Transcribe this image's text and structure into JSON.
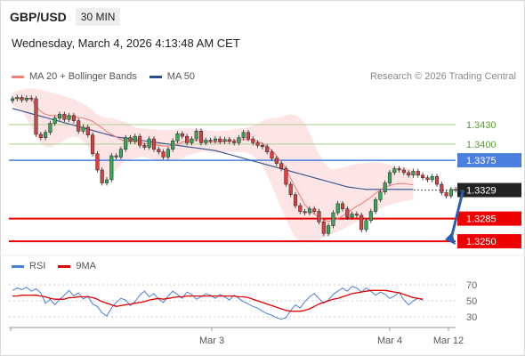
{
  "header": {
    "symbol": "GBP/USD",
    "timeframe": "30 MIN",
    "datetime": "Wednesday, March 4, 2026 4:13:48 AM CET"
  },
  "legend": {
    "ma20": {
      "label": "MA 20 + Bollinger Bands",
      "color": "#f08080"
    },
    "ma50": {
      "label": "MA 50",
      "color": "#2c4f8c"
    }
  },
  "credit": "Research © 2026 Trading Central",
  "rsi_legend": {
    "rsi": {
      "label": "RSI",
      "color": "#4a7fd6"
    },
    "ma9": {
      "label": "9MA",
      "color": "#e00000"
    }
  },
  "chart_data": [
    {
      "type": "line",
      "subtype": "candlestick",
      "title": "",
      "x_ticks": [
        "Mar 3",
        "Mar 4",
        "Mar 12"
      ],
      "ylim": [
        1.3235,
        1.3485
      ],
      "levels": [
        {
          "value": "1.3430",
          "kind": "target",
          "color": "#a9d08e",
          "text_color": "#5a9e2f"
        },
        {
          "value": "1.3400",
          "kind": "target",
          "color": "#a9d08e",
          "text_color": "#5a9e2f"
        },
        {
          "value": "1.3375",
          "kind": "pivot",
          "color": "#4a7fe0",
          "text_color": "#ffffff"
        },
        {
          "value": "1.3329",
          "kind": "last",
          "color": "#222222",
          "text_color": "#ffffff"
        },
        {
          "value": "1.3285",
          "kind": "target",
          "color": "#ee0000",
          "text_color": "#ffffff"
        },
        {
          "value": "1.3250",
          "kind": "target",
          "color": "#ee0000",
          "text_color": "#ffffff"
        }
      ],
      "close": [
        1.347,
        1.3472,
        1.3468,
        1.3471,
        1.347,
        1.3415,
        1.341,
        1.3418,
        1.3432,
        1.344,
        1.3446,
        1.3438,
        1.3444,
        1.3436,
        1.342,
        1.3426,
        1.3414,
        1.3385,
        1.336,
        1.334,
        1.3345,
        1.3382,
        1.338,
        1.3392,
        1.341,
        1.3404,
        1.3412,
        1.3398,
        1.3395,
        1.3408,
        1.3392,
        1.3388,
        1.338,
        1.3392,
        1.3405,
        1.3416,
        1.3412,
        1.3402,
        1.3408,
        1.342,
        1.3402,
        1.3406,
        1.3405,
        1.3408,
        1.3404,
        1.3407,
        1.3404,
        1.3402,
        1.341,
        1.3418,
        1.3408,
        1.3402,
        1.3398,
        1.3396,
        1.3388,
        1.3378,
        1.337,
        1.3362,
        1.3338,
        1.3322,
        1.3305,
        1.3296,
        1.3294,
        1.33,
        1.3296,
        1.328,
        1.3262,
        1.3274,
        1.3294,
        1.3308,
        1.33,
        1.3287,
        1.3292,
        1.329,
        1.3268,
        1.3282,
        1.3296,
        1.3314,
        1.3326,
        1.334,
        1.3356,
        1.3362,
        1.336,
        1.3356,
        1.3352,
        1.3358,
        1.3352,
        1.3348,
        1.3345,
        1.335,
        1.3338,
        1.3325,
        1.332,
        1.333,
        1.3329,
        1.3329
      ],
      "ma20": [
        1.347,
        1.3471,
        1.347,
        1.347,
        1.347,
        1.3459,
        1.345,
        1.3446,
        1.3444,
        1.3444,
        1.3444,
        1.3443,
        1.3443,
        1.3443,
        1.3441,
        1.344,
        1.3438,
        1.3435,
        1.343,
        1.3425,
        1.3419,
        1.3415,
        1.3411,
        1.3407,
        1.3404,
        1.3404,
        1.3404,
        1.3403,
        1.3401,
        1.34,
        1.3399,
        1.3398,
        1.3397,
        1.3397,
        1.3398,
        1.34,
        1.3403,
        1.3404,
        1.3405,
        1.3406,
        1.3405,
        1.3404,
        1.3403,
        1.3403,
        1.3403,
        1.3404,
        1.3405,
        1.3405,
        1.3406,
        1.3407,
        1.3407,
        1.3406,
        1.3404,
        1.3401,
        1.3396,
        1.339,
        1.3382,
        1.3373,
        1.3361,
        1.3347,
        1.3333,
        1.332,
        1.3307,
        1.3298,
        1.3292,
        1.3287,
        1.3283,
        1.3281,
        1.3282,
        1.3285,
        1.3289,
        1.3294,
        1.3299,
        1.3304,
        1.3308,
        1.3313,
        1.3318,
        1.3324,
        1.3329,
        1.3333,
        1.3336,
        1.3338,
        1.3339,
        1.3339,
        1.3338,
        1.3337
      ],
      "ma50": [
        1.3455,
        1.3453,
        1.3451,
        1.3449,
        1.3447,
        1.3445,
        1.3443,
        1.3441,
        1.3439,
        1.3437,
        1.3435,
        1.3433,
        1.3431,
        1.3429,
        1.3427,
        1.3425,
        1.3423,
        1.3421,
        1.3419,
        1.3417,
        1.3415,
        1.3413,
        1.3411,
        1.341,
        1.3409,
        1.3408,
        1.3407,
        1.3406,
        1.3405,
        1.3404,
        1.3403,
        1.3402,
        1.3401,
        1.34,
        1.3399,
        1.3398,
        1.3397,
        1.3396,
        1.3395,
        1.3394,
        1.3393,
        1.3392,
        1.3391,
        1.339,
        1.3388,
        1.3386,
        1.3384,
        1.3382,
        1.338,
        1.3378,
        1.3376,
        1.3374,
        1.3372,
        1.337,
        1.3368,
        1.3366,
        1.3364,
        1.3362,
        1.336,
        1.3358,
        1.3356,
        1.3354,
        1.3352,
        1.335,
        1.3348,
        1.3346,
        1.3344,
        1.3342,
        1.334,
        1.3338,
        1.3336,
        1.3334,
        1.3333,
        1.3332,
        1.3331,
        1.333,
        1.333,
        1.333,
        1.333,
        1.333,
        1.333,
        1.333,
        1.333,
        1.333,
        1.333,
        1.333
      ],
      "bb_upper": [
        1.348,
        1.3482,
        1.3484,
        1.3486,
        1.3486,
        1.3485,
        1.3484,
        1.3482,
        1.348,
        1.3478,
        1.3476,
        1.3474,
        1.3472,
        1.347,
        1.3466,
        1.3462,
        1.3458,
        1.3452,
        1.3446,
        1.3442,
        1.344,
        1.344,
        1.3438,
        1.3436,
        1.3434,
        1.343,
        1.3426,
        1.3424,
        1.3424,
        1.3423,
        1.3423,
        1.3422,
        1.3422,
        1.3422,
        1.3422,
        1.3423,
        1.3424,
        1.3424,
        1.3424,
        1.3424,
        1.3423,
        1.3422,
        1.3421,
        1.342,
        1.342,
        1.3421,
        1.3422,
        1.3423,
        1.3424,
        1.3425,
        1.3426,
        1.3428,
        1.3432,
        1.3436,
        1.3438,
        1.344,
        1.344,
        1.3442,
        1.3444,
        1.3446,
        1.3445,
        1.344,
        1.3432,
        1.3418,
        1.34,
        1.3385,
        1.3372,
        1.3364,
        1.336,
        1.3362,
        1.3364,
        1.3366,
        1.3368,
        1.3369,
        1.337,
        1.3371,
        1.3372,
        1.3372,
        1.3371,
        1.337,
        1.3368,
        1.3366,
        1.3365,
        1.3364,
        1.3363,
        1.3362
      ],
      "bb_lower": [
        1.346,
        1.3456,
        1.345,
        1.344,
        1.3425,
        1.341,
        1.34,
        1.3395,
        1.3395,
        1.3398,
        1.3402,
        1.3406,
        1.341,
        1.3412,
        1.341,
        1.3404,
        1.3396,
        1.3384,
        1.3368,
        1.3352,
        1.3346,
        1.3352,
        1.336,
        1.3368,
        1.3374,
        1.3376,
        1.3378,
        1.338,
        1.338,
        1.3378,
        1.3376,
        1.3375,
        1.3374,
        1.3373,
        1.3374,
        1.3376,
        1.3378,
        1.3382,
        1.3384,
        1.3386,
        1.3388,
        1.3388,
        1.3387,
        1.3386,
        1.3386,
        1.3387,
        1.3388,
        1.3388,
        1.3388,
        1.3388,
        1.3386,
        1.3382,
        1.3376,
        1.3366,
        1.3352,
        1.3336,
        1.3318,
        1.33,
        1.3284,
        1.3268,
        1.3256,
        1.325,
        1.3248,
        1.3248,
        1.325,
        1.3252,
        1.3256,
        1.3258,
        1.3262,
        1.3265,
        1.3268,
        1.3272,
        1.3276,
        1.328,
        1.3284,
        1.3288,
        1.3292,
        1.3296,
        1.33,
        1.3304,
        1.3306,
        1.3308,
        1.331,
        1.3312,
        1.3313,
        1.3314
      ],
      "projection": {
        "from": 1.3329,
        "to": 1.325
      }
    },
    {
      "type": "line",
      "title": "",
      "ylim": [
        20,
        80
      ],
      "y_ticks": [
        "70",
        "50",
        "30"
      ],
      "series": [
        {
          "name": "RSI",
          "values": [
            63,
            66,
            64,
            67,
            62,
            65,
            60,
            47,
            52,
            45,
            52,
            57,
            63,
            56,
            60,
            52,
            56,
            46,
            43,
            35,
            31,
            41,
            48,
            53,
            51,
            44,
            49,
            57,
            62,
            55,
            59,
            52,
            48,
            56,
            62,
            58,
            53,
            61,
            58,
            52,
            55,
            59,
            57,
            53,
            58,
            55,
            51,
            57,
            53,
            49,
            46,
            43,
            41,
            37,
            34,
            32,
            29,
            27,
            29,
            38,
            45,
            41,
            49,
            55,
            59,
            53,
            47,
            51,
            58,
            62,
            66,
            62,
            68,
            66,
            61,
            66,
            62,
            57,
            61,
            58,
            53,
            56,
            61,
            51,
            45,
            50,
            53,
            51
          ]
        },
        {
          "name": "9MA",
          "values": [
            56,
            56,
            57,
            57,
            57,
            57,
            56,
            55,
            53,
            52,
            52,
            52,
            54,
            54,
            55,
            55,
            55,
            54,
            52,
            49,
            47,
            45,
            43,
            44,
            45,
            46,
            47,
            48,
            49,
            51,
            52,
            53,
            52,
            53,
            54,
            55,
            55,
            56,
            56,
            56,
            56,
            56,
            56,
            56,
            56,
            56,
            56,
            56,
            55,
            55,
            54,
            52,
            50,
            48,
            46,
            44,
            42,
            40,
            38,
            37,
            37,
            37,
            38,
            40,
            43,
            46,
            48,
            50,
            52,
            53,
            55,
            57,
            59,
            60,
            61,
            62,
            63,
            63,
            63,
            63,
            62,
            61,
            60,
            58,
            56,
            54,
            53,
            52
          ]
        }
      ]
    }
  ]
}
